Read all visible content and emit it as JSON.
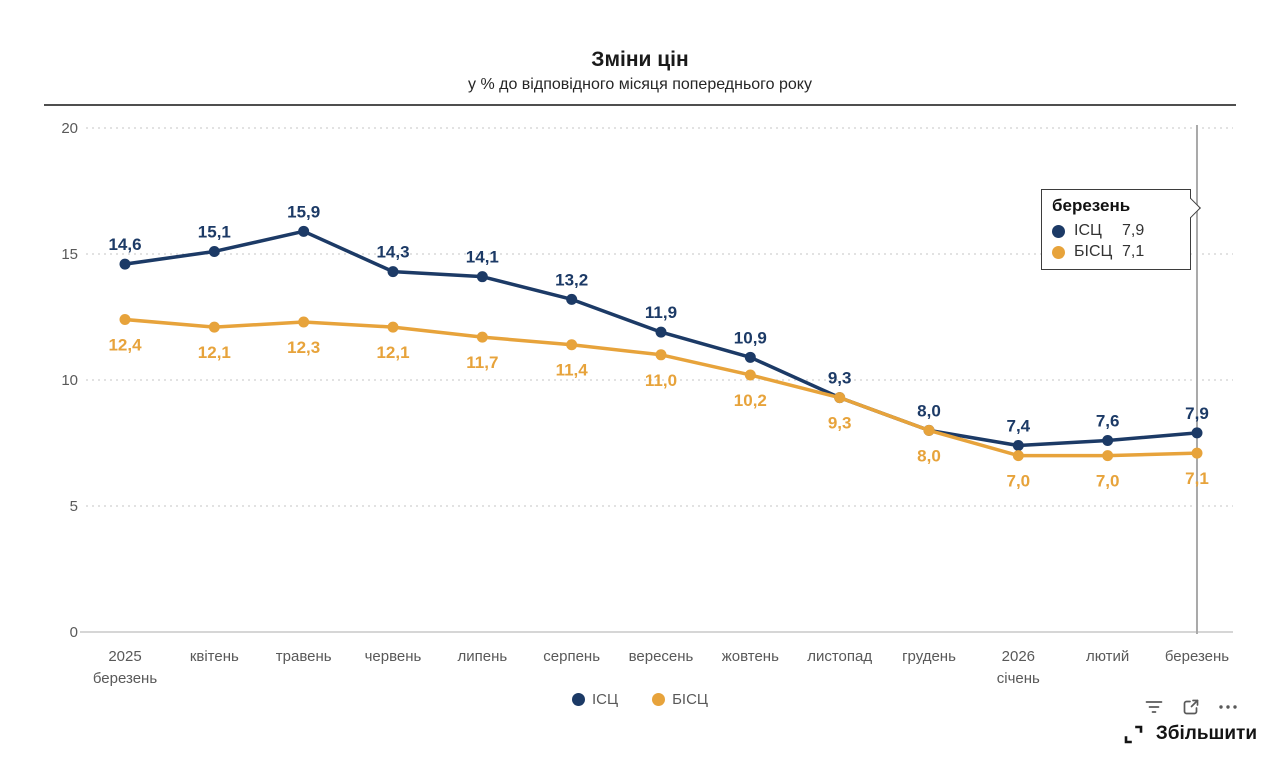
{
  "header": {
    "title": "Зміни цін",
    "subtitle": "у % до відповідного місяця попереднього року"
  },
  "chart_data": {
    "type": "line",
    "categories": [
      [
        "2025",
        "березень"
      ],
      "квітень",
      "травень",
      "червень",
      "липень",
      "серпень",
      "вересень",
      "жовтень",
      "листопад",
      "грудень",
      [
        "2026",
        "січень"
      ],
      "лютий",
      "березень"
    ],
    "series": [
      {
        "name": "ІСЦ",
        "color": "#1c3a66",
        "values": [
          14.6,
          15.1,
          15.9,
          14.3,
          14.1,
          13.2,
          11.9,
          10.9,
          9.3,
          8.0,
          7.4,
          7.6,
          7.9
        ]
      },
      {
        "name": "БІСЦ",
        "color": "#e7a33b",
        "values": [
          12.4,
          12.1,
          12.3,
          12.1,
          11.7,
          11.4,
          11.0,
          10.2,
          9.3,
          8.0,
          7.0,
          7.0,
          7.1
        ]
      }
    ],
    "title": "Зміни цін",
    "xlabel": "",
    "ylabel": "",
    "ylim": [
      0,
      20
    ],
    "yticks": [
      0,
      5,
      10,
      15,
      20
    ],
    "grid": "dotted-horizontal",
    "legend_position": "bottom",
    "decimal_separator": ",",
    "hover_index": 12
  },
  "tooltip": {
    "title": "березень",
    "rows": [
      {
        "name": "ІСЦ",
        "value": "7,9"
      },
      {
        "name": "БІСЦ",
        "value": "7,1"
      }
    ]
  },
  "legend": {
    "items": [
      {
        "label": "ІСЦ"
      },
      {
        "label": "БІСЦ"
      }
    ]
  },
  "toolbar": {
    "zoom_label": "Збільшити",
    "icons": [
      "filter-icon",
      "expand-icon",
      "more-options-icon"
    ]
  },
  "colors": {
    "grid": "#d9d9d9",
    "axis_line": "#c9c9c9",
    "tick_text": "#595959",
    "crosshair": "#a9a9a9",
    "tooltip_border": "#3d3d3d",
    "icon": "#595959",
    "zoom_text": "#141414"
  }
}
